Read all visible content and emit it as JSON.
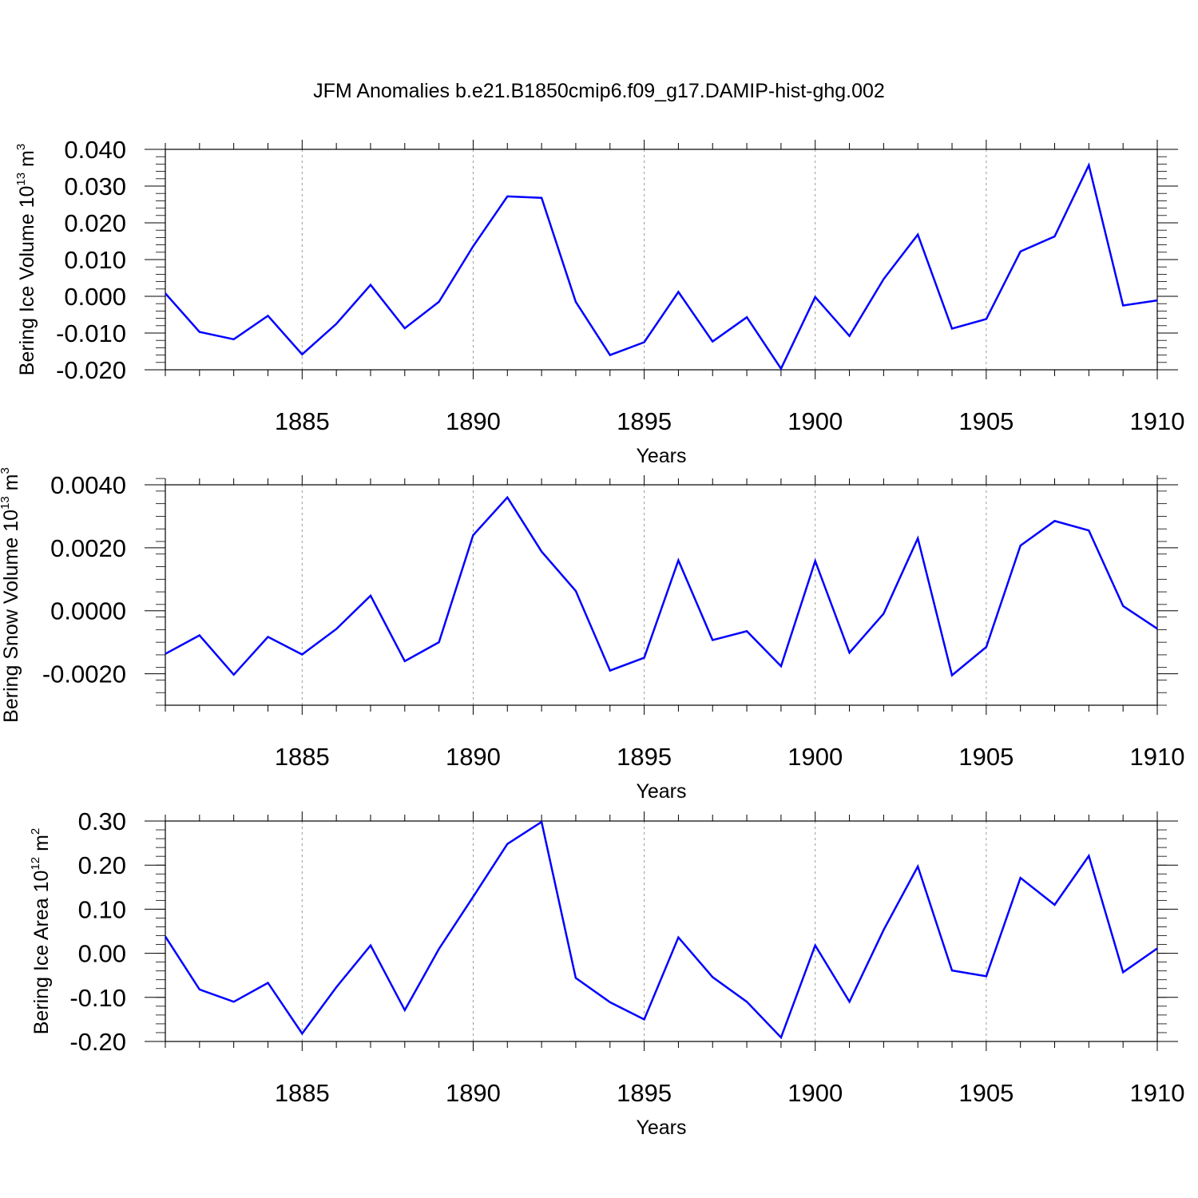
{
  "figure": {
    "title": "JFM Anomalies b.e21.B1850cmip6.f09_g17.DAMIP-hist-ghg.002"
  },
  "chart_data": [
    {
      "type": "line",
      "series_name": "Bering Ice Volume",
      "ylabel_main": "Bering Ice Volume 10",
      "ylabel_exp": "13",
      "ylabel_unit": " m",
      "ylabel_unit_exp": "3",
      "xlabel": "Years",
      "color": "#0000ff",
      "xlim": [
        1881,
        1910
      ],
      "ylim": [
        -0.02,
        0.04
      ],
      "x_ticks": [
        1885,
        1890,
        1895,
        1900,
        1905,
        1910
      ],
      "x_tick_labels": [
        "1885",
        "1890",
        "1895",
        "1900",
        "1905",
        "1910"
      ],
      "y_ticks": [
        -0.02,
        -0.01,
        0.0,
        0.01,
        0.02,
        0.03,
        0.04
      ],
      "y_tick_labels": [
        "-0.020",
        "-0.010",
        "0.000",
        "0.010",
        "0.020",
        "0.030",
        "0.040"
      ],
      "y_minor_step": 0.002,
      "grid_x": [
        1885,
        1890,
        1895,
        1900,
        1905
      ],
      "x": [
        1881,
        1882,
        1883,
        1884,
        1885,
        1886,
        1887,
        1888,
        1889,
        1890,
        1891,
        1892,
        1893,
        1894,
        1895,
        1896,
        1897,
        1898,
        1899,
        1900,
        1901,
        1902,
        1903,
        1904,
        1905,
        1906,
        1907,
        1908,
        1909,
        1910
      ],
      "y": [
        0.0008,
        -0.0097,
        -0.0117,
        -0.0053,
        -0.0158,
        -0.0075,
        0.0031,
        -0.0087,
        -0.0015,
        0.0136,
        0.0272,
        0.0268,
        -0.0015,
        -0.016,
        -0.0125,
        0.0012,
        -0.0123,
        -0.0057,
        -0.0197,
        -0.0002,
        -0.0108,
        0.0047,
        0.0168,
        -0.0088,
        -0.0062,
        0.0122,
        0.0163,
        0.0357,
        -0.0025,
        -0.0011
      ]
    },
    {
      "type": "line",
      "series_name": "Bering Snow Volume",
      "ylabel_main": "Bering Snow Volume 10",
      "ylabel_exp": "13",
      "ylabel_unit": " m",
      "ylabel_unit_exp": "3",
      "xlabel": "Years",
      "color": "#0000ff",
      "xlim": [
        1881,
        1910
      ],
      "ylim": [
        -0.003,
        0.004
      ],
      "x_ticks": [
        1885,
        1890,
        1895,
        1900,
        1905,
        1910
      ],
      "x_tick_labels": [
        "1885",
        "1890",
        "1895",
        "1900",
        "1905",
        "1910"
      ],
      "y_ticks": [
        -0.002,
        0.0,
        0.002,
        0.004
      ],
      "y_tick_labels": [
        "-0.0020",
        "0.0000",
        "0.0020",
        "0.0040"
      ],
      "y_minor_step": 0.0004,
      "grid_x": [
        1885,
        1890,
        1895,
        1900,
        1905
      ],
      "x": [
        1881,
        1882,
        1883,
        1884,
        1885,
        1886,
        1887,
        1888,
        1889,
        1890,
        1891,
        1892,
        1893,
        1894,
        1895,
        1896,
        1897,
        1898,
        1899,
        1900,
        1901,
        1902,
        1903,
        1904,
        1905,
        1906,
        1907,
        1908,
        1909,
        1910
      ],
      "y": [
        -0.00137,
        -0.00078,
        -0.00203,
        -0.00083,
        -0.00139,
        -0.00058,
        0.00048,
        -0.0016,
        -0.001,
        0.0024,
        0.0036,
        0.00188,
        0.00063,
        -0.0019,
        -0.00149,
        0.0016,
        -0.00093,
        -0.00065,
        -0.00176,
        0.00158,
        -0.00133,
        -9e-05,
        0.0023,
        -0.00205,
        -0.00115,
        0.00207,
        0.00285,
        0.00255,
        0.00015,
        -0.00057
      ]
    },
    {
      "type": "line",
      "series_name": "Bering Ice Area",
      "ylabel_main": "Bering Ice Area 10",
      "ylabel_exp": "12",
      "ylabel_unit": " m",
      "ylabel_unit_exp": "2",
      "xlabel": "Years",
      "color": "#0000ff",
      "xlim": [
        1881,
        1910
      ],
      "ylim": [
        -0.2,
        0.3
      ],
      "x_ticks": [
        1885,
        1890,
        1895,
        1900,
        1905,
        1910
      ],
      "x_tick_labels": [
        "1885",
        "1890",
        "1895",
        "1900",
        "1905",
        "1910"
      ],
      "y_ticks": [
        -0.2,
        -0.1,
        0.0,
        0.1,
        0.2,
        0.3
      ],
      "y_tick_labels": [
        "-0.20",
        "-0.10",
        "0.00",
        "0.10",
        "0.20",
        "0.30"
      ],
      "y_minor_step": 0.02,
      "grid_x": [
        1885,
        1890,
        1895,
        1900,
        1905
      ],
      "x": [
        1881,
        1882,
        1883,
        1884,
        1885,
        1886,
        1887,
        1888,
        1889,
        1890,
        1891,
        1892,
        1893,
        1894,
        1895,
        1896,
        1897,
        1898,
        1899,
        1900,
        1901,
        1902,
        1903,
        1904,
        1905,
        1906,
        1907,
        1908,
        1909,
        1910
      ],
      "y": [
        0.038,
        -0.082,
        -0.11,
        -0.067,
        -0.182,
        -0.077,
        0.018,
        -0.129,
        0.01,
        0.128,
        0.248,
        0.298,
        -0.056,
        -0.111,
        -0.15,
        0.036,
        -0.054,
        -0.11,
        -0.191,
        0.018,
        -0.11,
        0.053,
        0.197,
        -0.039,
        -0.052,
        0.171,
        0.11,
        0.221,
        -0.043,
        0.011
      ]
    }
  ]
}
